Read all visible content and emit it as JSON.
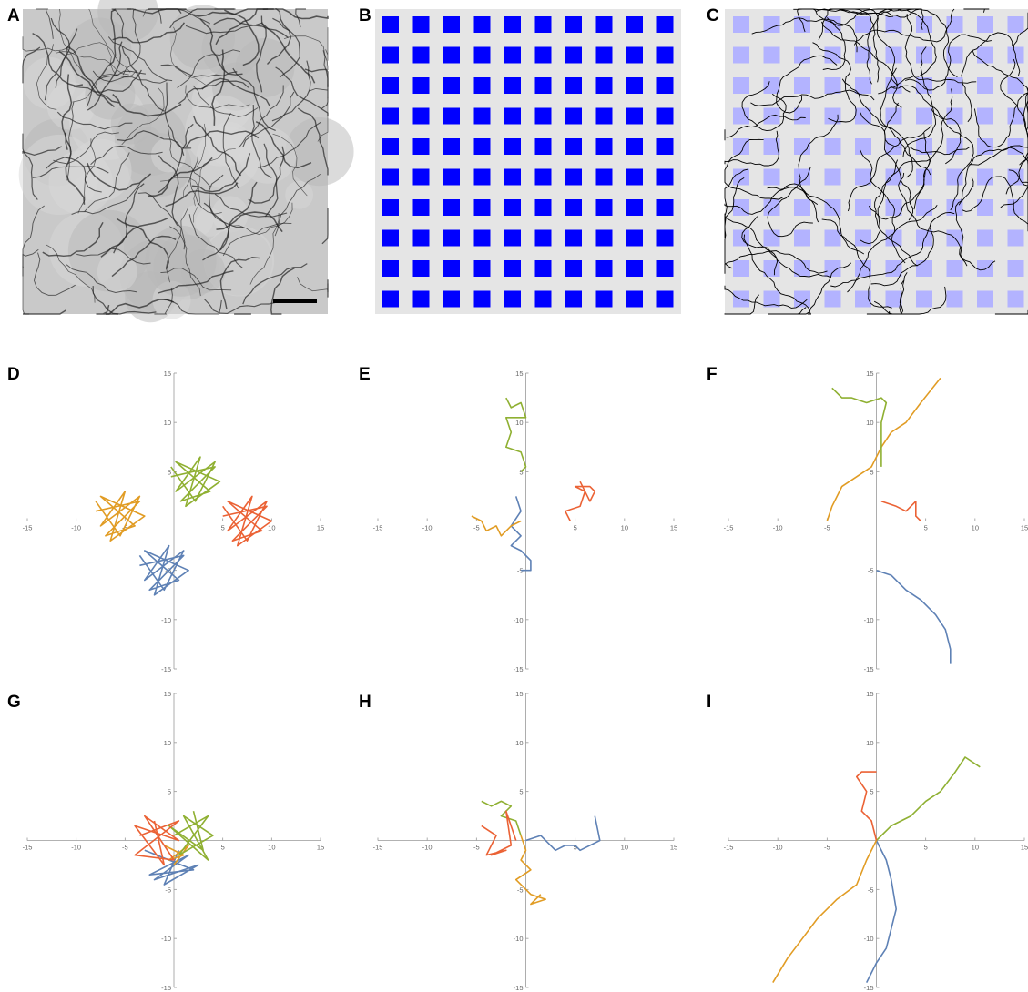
{
  "panels": [
    "A",
    "B",
    "C",
    "D",
    "E",
    "F",
    "G",
    "H",
    "I"
  ],
  "chart_data": [
    {
      "type": "line",
      "xlim": [
        -15,
        15
      ],
      "ylim": [
        -15,
        15
      ],
      "xticks": [
        -15,
        -10,
        -5,
        5,
        10,
        15
      ],
      "yticks": [
        -15,
        -10,
        -5,
        5,
        10,
        15
      ],
      "series": [
        {
          "color": "#5E81B5",
          "x": [
            -3.5,
            1,
            -2.5,
            0.5,
            -3,
            1.5,
            -2,
            -0.5,
            -3,
            1,
            -1,
            -3.5
          ],
          "y": [
            -4.5,
            -3.5,
            -7,
            -6,
            -3,
            -5,
            -7.5,
            -2.5,
            -6,
            -3,
            -7,
            -3.5
          ]
        },
        {
          "color": "#E19C24",
          "x": [
            -8,
            -3.5,
            -7,
            -4,
            -7.5,
            -3,
            -6.5,
            -5,
            -7.5,
            -3.5,
            -5.5,
            -8
          ],
          "y": [
            1,
            2,
            -1.5,
            -0.5,
            2.5,
            0.5,
            -2,
            3,
            -0.5,
            2.5,
            -1.5,
            2
          ]
        },
        {
          "color": "#8FB032",
          "x": [
            -0.3,
            4.2,
            0.7,
            3.7,
            0.2,
            4.7,
            1.2,
            2.7,
            0.2,
            4.2,
            2.2,
            -0.3
          ],
          "y": [
            4.5,
            5.5,
            2,
            3,
            6,
            4,
            1.5,
            6.5,
            3,
            6,
            2,
            5.5
          ]
        },
        {
          "color": "#EB6235",
          "x": [
            5,
            9.5,
            6,
            9,
            5.5,
            10,
            6.5,
            8,
            5.5,
            9.5,
            7.5,
            5
          ],
          "y": [
            0.5,
            1.5,
            -2,
            -1,
            2,
            0,
            -2.5,
            2.5,
            -1,
            2,
            -2,
            1.5
          ]
        }
      ]
    },
    {
      "type": "line",
      "xlim": [
        -15,
        15
      ],
      "ylim": [
        -15,
        15
      ],
      "xticks": [
        -15,
        -10,
        -5,
        5,
        10,
        15
      ],
      "yticks": [
        -15,
        -10,
        -5,
        5,
        10,
        15
      ],
      "series": [
        {
          "color": "#5E81B5",
          "x": [
            -1,
            -0.5,
            -1.5,
            -0.5,
            -1.5,
            -0.5,
            0.5,
            0.5,
            -0.5
          ],
          "y": [
            2.5,
            1,
            -0.5,
            -1.5,
            -2.5,
            -3,
            -4,
            -5,
            -5
          ]
        },
        {
          "color": "#E19C24",
          "x": [
            -5.5,
            -4.5,
            -4,
            -3,
            -2.5,
            -1.5,
            -0.5
          ],
          "y": [
            0.5,
            0,
            -1,
            -0.5,
            -1.5,
            -0.5,
            0
          ]
        },
        {
          "color": "#8FB032",
          "x": [
            -2,
            -1.5,
            -0.5,
            0,
            -2,
            -1.5,
            -2,
            -0.5,
            0,
            -0.5
          ],
          "y": [
            12.5,
            11.5,
            12,
            10.5,
            10.5,
            9,
            7.5,
            7,
            5.5,
            5
          ]
        },
        {
          "color": "#EB6235",
          "x": [
            4.5,
            4,
            5.5,
            6,
            5,
            6.5,
            7,
            6.5,
            5.5
          ],
          "y": [
            0,
            1,
            1.5,
            3,
            3.5,
            3.5,
            3,
            2,
            4
          ]
        }
      ]
    },
    {
      "type": "line",
      "xlim": [
        -15,
        15
      ],
      "ylim": [
        -15,
        15
      ],
      "xticks": [
        -15,
        -10,
        -5,
        5,
        10,
        15
      ],
      "yticks": [
        -15,
        -10,
        -5,
        5,
        10,
        15
      ],
      "series": [
        {
          "color": "#5E81B5",
          "x": [
            0,
            1.5,
            3,
            4.5,
            6,
            7,
            7.5,
            7.5
          ],
          "y": [
            -5,
            -5.5,
            -7,
            -8,
            -9.5,
            -11,
            -13,
            -14.5
          ]
        },
        {
          "color": "#E19C24",
          "x": [
            -5,
            -4.5,
            -3.5,
            -2,
            -0.5,
            0.5,
            1.5,
            3,
            4.5,
            6.5
          ],
          "y": [
            0,
            1.5,
            3.5,
            4.5,
            5.5,
            7.5,
            9,
            10,
            12,
            14.5
          ]
        },
        {
          "color": "#8FB032",
          "x": [
            -4.5,
            -3.5,
            -2.5,
            -1,
            0.5,
            1,
            0.5,
            0.5,
            0.5
          ],
          "y": [
            13.5,
            12.5,
            12.5,
            12,
            12.5,
            12,
            10,
            8,
            5.5
          ]
        },
        {
          "color": "#EB6235",
          "x": [
            0.5,
            2,
            3,
            3.5,
            4,
            4,
            4.5
          ],
          "y": [
            2,
            1.5,
            1,
            1.5,
            2,
            0.5,
            0
          ]
        }
      ]
    },
    {
      "type": "line",
      "xlim": [
        -15,
        15
      ],
      "ylim": [
        -15,
        15
      ],
      "xticks": [
        -15,
        -10,
        -5,
        5,
        10,
        15
      ],
      "yticks": [
        -15,
        -10,
        -5,
        5,
        10,
        15
      ],
      "series": [
        {
          "color": "#5E81B5",
          "x": [
            -3,
            2,
            -2.5,
            1.5,
            -2,
            2.5,
            -1,
            0.5
          ],
          "y": [
            -1,
            -3,
            -3.5,
            -1.5,
            -4,
            -2.5,
            -4.5,
            -1
          ]
        },
        {
          "color": "#E19C24",
          "x": [
            -1,
            1,
            -0.5,
            1.5,
            0
          ],
          "y": [
            -0.5,
            -1.5,
            -2,
            -0.5,
            -2.5
          ]
        },
        {
          "color": "#8FB032",
          "x": [
            0,
            3.5,
            0.5,
            4,
            1,
            3.5,
            -0.5,
            3,
            2
          ],
          "y": [
            0.5,
            2.5,
            -1.5,
            0.5,
            2.5,
            -2,
            1.5,
            -1,
            3
          ]
        },
        {
          "color": "#EB6235",
          "x": [
            -3.5,
            0.5,
            -4,
            0,
            -3,
            0.5,
            -4,
            -1,
            -2
          ],
          "y": [
            0.5,
            2,
            -1.5,
            -2,
            2.5,
            0,
            1.5,
            -2.5,
            2
          ]
        }
      ]
    },
    {
      "type": "line",
      "xlim": [
        -15,
        15
      ],
      "ylim": [
        -15,
        15
      ],
      "xticks": [
        -15,
        -10,
        -5,
        5,
        10,
        15
      ],
      "yticks": [
        -15,
        -10,
        -5,
        5,
        10,
        15
      ],
      "series": [
        {
          "color": "#5E81B5",
          "x": [
            0,
            1.5,
            3,
            4,
            5,
            5.5,
            7.5,
            7
          ],
          "y": [
            0,
            0.5,
            -1,
            -0.5,
            -0.5,
            -1,
            0,
            2.5
          ]
        },
        {
          "color": "#E19C24",
          "x": [
            -0.5,
            0,
            -0.5,
            0.5,
            -1,
            0.5,
            2,
            0.5,
            1.5
          ],
          "y": [
            0.5,
            -1,
            -2,
            -3,
            -4,
            -5.5,
            -6,
            -6.5,
            -5.5
          ]
        },
        {
          "color": "#8FB032",
          "x": [
            -4.5,
            -3.5,
            -2.5,
            -1.5,
            -2.5,
            -1,
            -0.5
          ],
          "y": [
            4,
            3.5,
            4,
            3.5,
            2.5,
            2,
            0.5
          ]
        },
        {
          "color": "#EB6235",
          "x": [
            -4.5,
            -3,
            -4,
            -2,
            -3.5,
            -1.5,
            -2,
            -1
          ],
          "y": [
            1.5,
            0.5,
            -1.5,
            -1,
            -1.5,
            -0.5,
            3,
            0
          ]
        }
      ]
    },
    {
      "type": "line",
      "xlim": [
        -15,
        15
      ],
      "ylim": [
        -15,
        15
      ],
      "xticks": [
        -15,
        -10,
        -5,
        5,
        10,
        15
      ],
      "yticks": [
        -15,
        -10,
        -5,
        5,
        10,
        15
      ],
      "series": [
        {
          "color": "#5E81B5",
          "x": [
            0,
            1,
            1.5,
            2,
            1.5,
            1,
            0,
            -1
          ],
          "y": [
            0,
            -2,
            -4,
            -7,
            -9,
            -11,
            -12.5,
            -14.5
          ]
        },
        {
          "color": "#E19C24",
          "x": [
            0,
            -1,
            -2,
            -4,
            -6,
            -7.5,
            -9,
            -10.5
          ],
          "y": [
            0,
            -2,
            -4.5,
            -6,
            -8,
            -10,
            -12,
            -14.5
          ]
        },
        {
          "color": "#8FB032",
          "x": [
            0,
            1.5,
            3.5,
            5,
            6.5,
            8,
            9,
            10.5
          ],
          "y": [
            0,
            1.5,
            2.5,
            4,
            5,
            7,
            8.5,
            7.5
          ]
        },
        {
          "color": "#EB6235",
          "x": [
            0,
            -0.5,
            -1.5,
            -1,
            -2,
            -1.5,
            0
          ],
          "y": [
            0,
            2,
            3,
            5,
            6.5,
            7,
            7
          ]
        }
      ]
    }
  ]
}
